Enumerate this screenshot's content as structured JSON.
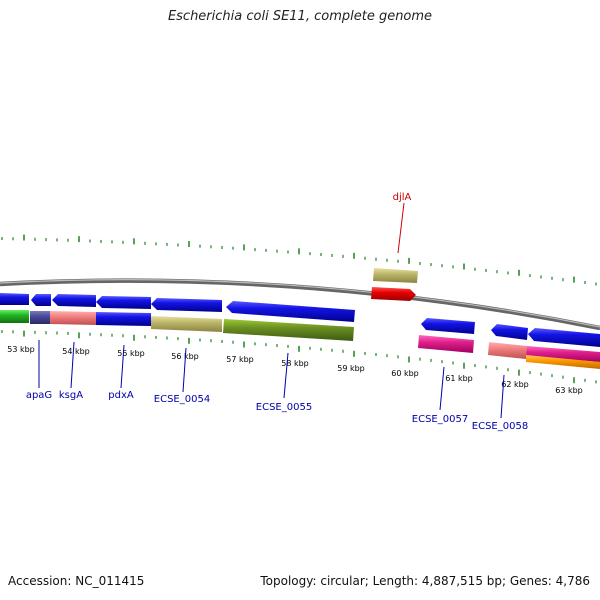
{
  "title": "Escherichia coli SE11, complete genome",
  "footer": {
    "accession": "Accession: NC_011415",
    "topology": "Topology: circular; Length: 4,887,515 bp; Genes: 4,786"
  },
  "axis": {
    "tick_labels": [
      "53 kbp",
      "54 kbp",
      "55 kbp",
      "56 kbp",
      "57 kbp",
      "58 kbp",
      "59 kbp",
      "60 kbp",
      "61 kbp",
      "62 kbp",
      "63 kbp"
    ]
  },
  "gene_labels": [
    {
      "text": "djlA",
      "color": "#cc0000"
    },
    {
      "text": "apaG",
      "color": "#0000aa"
    },
    {
      "text": "ksgA",
      "color": "#0000aa"
    },
    {
      "text": "pdxA",
      "color": "#0000aa"
    },
    {
      "text": "ECSE_0054",
      "color": "#0000aa"
    },
    {
      "text": "ECSE_0055",
      "color": "#0000aa"
    },
    {
      "text": "ECSE_0057",
      "color": "#0000aa"
    },
    {
      "text": "ECSE_0058",
      "color": "#0000aa"
    }
  ],
  "colors": {
    "backbone": "#888888",
    "tick": "#2e8b2e",
    "gene_blue": "#1414e6",
    "green": "#22b422",
    "olive": "#6b8e23",
    "khaki": "#bdb76b",
    "salmon": "#f08080",
    "magenta": "#e0208c",
    "orange": "#ff9900",
    "slate": "#4a4a9a",
    "red": "#e60000"
  }
}
